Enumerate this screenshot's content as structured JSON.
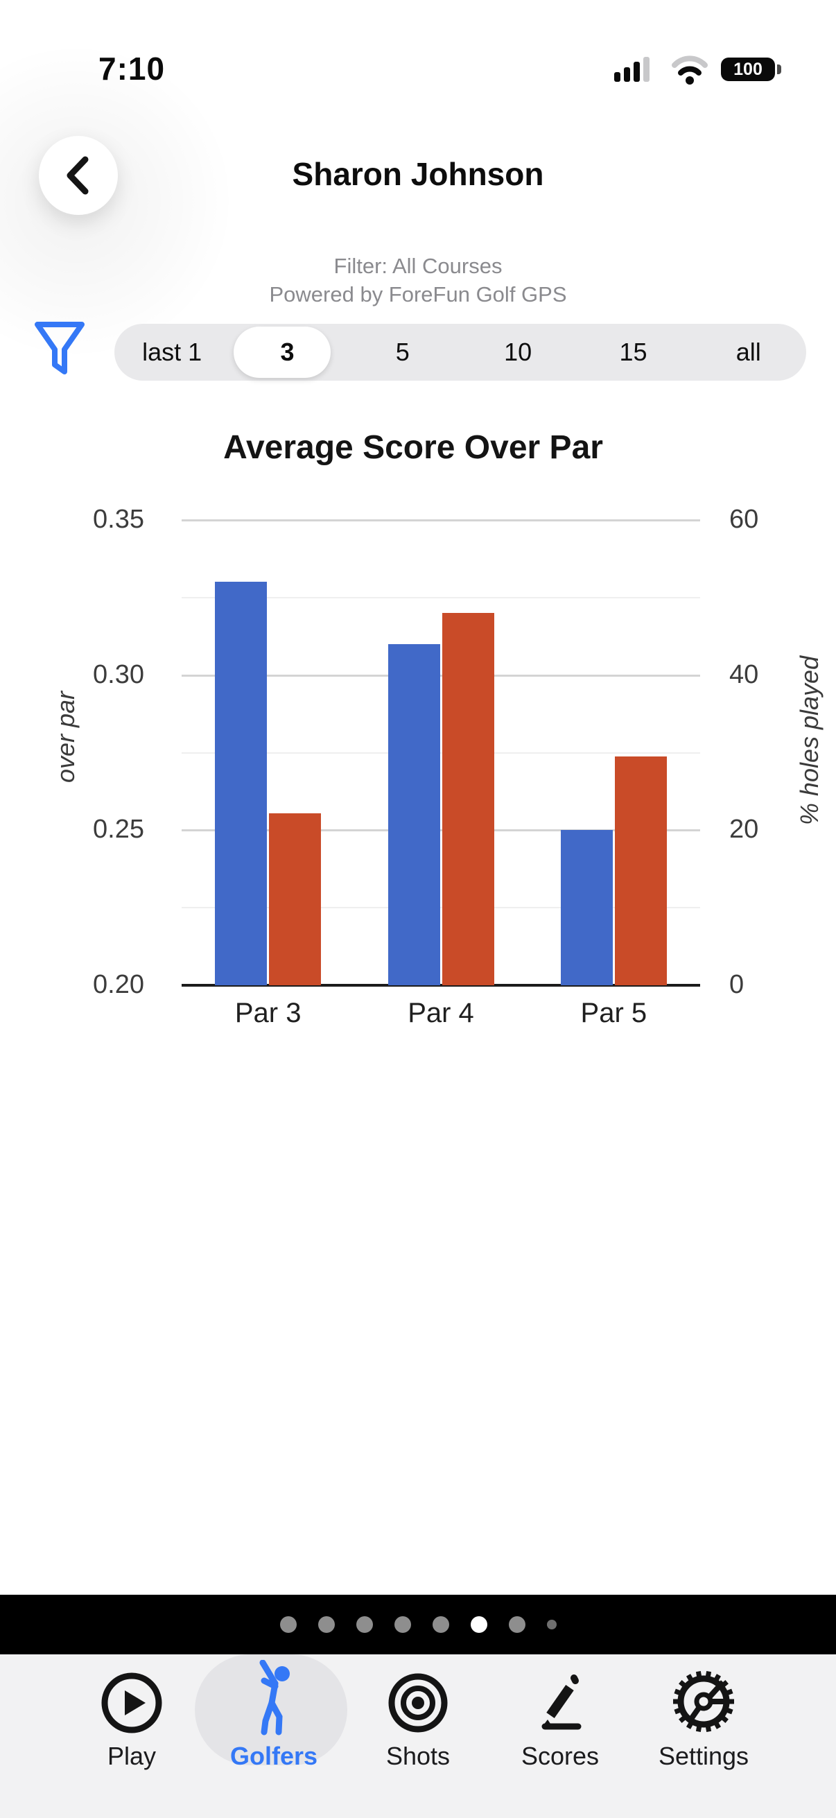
{
  "status_bar": {
    "time": "7:10",
    "battery_percent": "100"
  },
  "header": {
    "title": "Sharon Johnson",
    "filter_line": "Filter: All Courses",
    "powered_line": "Powered by ForeFun Golf GPS"
  },
  "range_selector": {
    "options": [
      "last 1",
      "3",
      "5",
      "10",
      "15",
      "all"
    ],
    "selected": "3",
    "selected_index": 1
  },
  "chart_data": {
    "type": "bar",
    "title": "Average Score Over Par",
    "categories": [
      "Par 3",
      "Par 4",
      "Par 5"
    ],
    "series": [
      {
        "name": "over par",
        "axis": "left",
        "color": "#4169c8",
        "values": [
          0.33,
          0.31,
          0.25
        ]
      },
      {
        "name": "% holes played",
        "axis": "right",
        "color": "#c94b28",
        "values": [
          22.2,
          48,
          29.5
        ]
      }
    ],
    "left_axis": {
      "label": "over par",
      "range": [
        0.2,
        0.35
      ],
      "ticks": [
        0.35,
        0.3,
        0.25,
        0.2
      ],
      "minor_ticks": [
        0.325,
        0.275,
        0.225
      ]
    },
    "right_axis": {
      "label": "% holes played",
      "range": [
        0,
        60
      ],
      "ticks": [
        60,
        40,
        20,
        0
      ]
    },
    "grid": true,
    "legend": "none"
  },
  "pager": {
    "count": 8,
    "active_index": 5
  },
  "tab_bar": {
    "items": [
      {
        "label": "Play"
      },
      {
        "label": "Golfers"
      },
      {
        "label": "Shots"
      },
      {
        "label": "Scores"
      },
      {
        "label": "Settings"
      }
    ],
    "selected": "Golfers",
    "selected_index": 1
  },
  "colors": {
    "accent_blue": "#3478f6",
    "bar_blue": "#4169c8",
    "bar_red": "#c94b28",
    "segment_bg": "#e9e9eb",
    "tab_bg": "#f2f2f3",
    "subtitle_gray": "#8a8a8e"
  }
}
